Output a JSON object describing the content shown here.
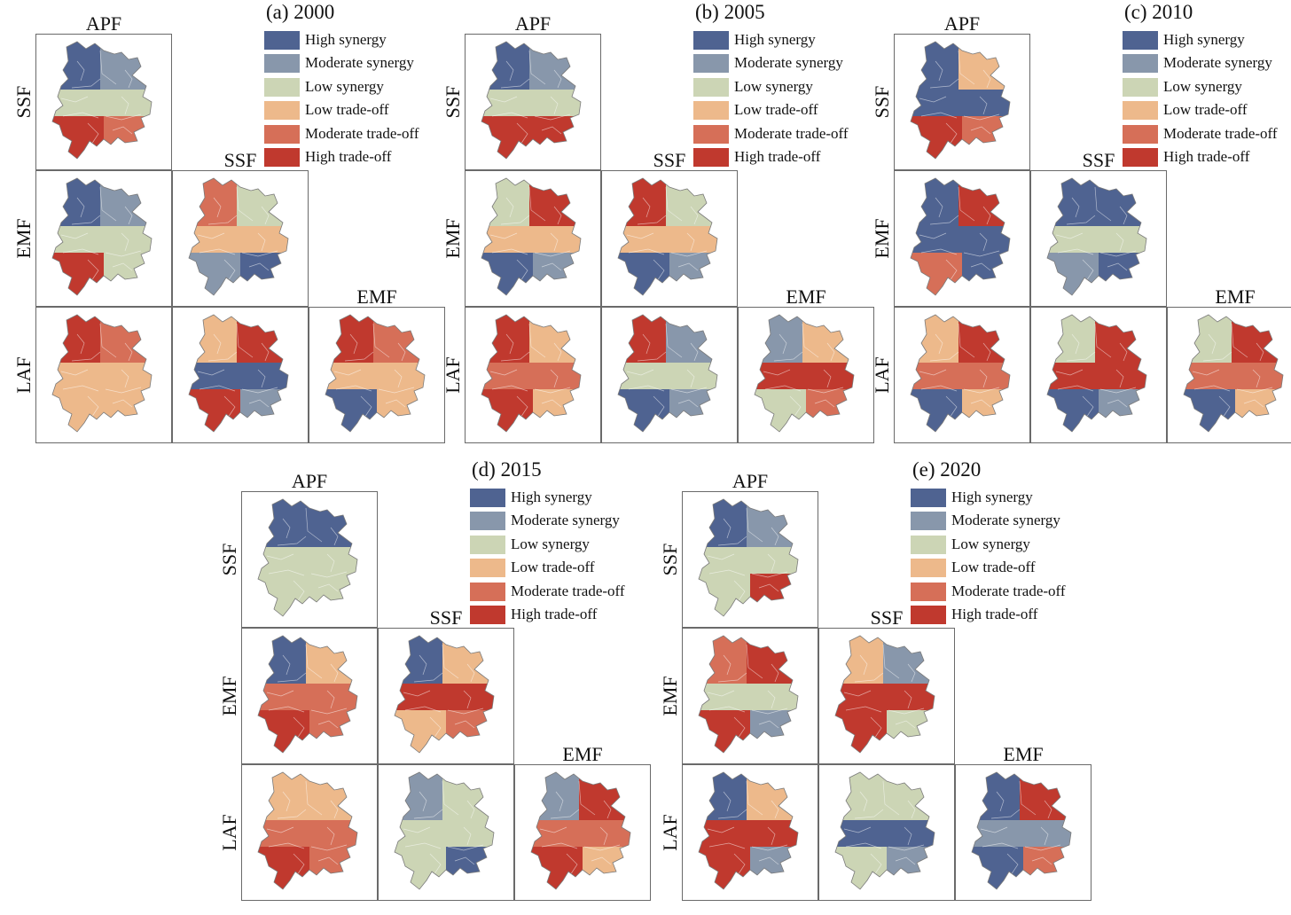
{
  "legend": [
    {
      "label": "High synergy",
      "color": "#4f6391"
    },
    {
      "label": "Moderate synergy",
      "color": "#8897ab"
    },
    {
      "label": "Low synergy",
      "color": "#ccd5b5"
    },
    {
      "label": "Low trade-off",
      "color": "#edb98b"
    },
    {
      "label": "Moderate trade-off",
      "color": "#d66f58"
    },
    {
      "label": "High trade-off",
      "color": "#c0392e"
    }
  ],
  "panels": [
    {
      "title": "(a) 2000",
      "cols": [
        "APF",
        "SSF",
        "EMF"
      ],
      "rows": [
        "SSF",
        "EMF",
        "LAF"
      ],
      "cells": [
        [
          "High synergy",
          "Moderate synergy",
          "Low synergy",
          "Low synergy",
          "High trade-off"
        ],
        [
          "High trade-off",
          "Moderate trade-off",
          "Low trade-off",
          "Low trade-off",
          "Low trade-off"
        ],
        [
          "Low trade-off",
          "High trade-off",
          "High synergy",
          "Moderate synergy",
          "High trade-off"
        ],
        [
          "High synergy",
          "Moderate synergy",
          "Low synergy",
          "Moderate trade-off",
          "High trade-off"
        ],
        [
          "Moderate trade-off",
          "Low synergy",
          "Low trade-off",
          "High synergy",
          "Moderate synergy"
        ],
        [
          "High trade-off",
          "Moderate trade-off",
          "Low trade-off",
          "Low trade-off",
          "High synergy"
        ]
      ]
    },
    {
      "title": "(b) 2005",
      "cols": [
        "APF",
        "SSF",
        "EMF"
      ],
      "rows": [
        "SSF",
        "EMF",
        "LAF"
      ],
      "cells": [
        [
          "Low synergy",
          "High trade-off",
          "Low trade-off",
          "Moderate synergy",
          "High synergy"
        ],
        [
          "High trade-off",
          "Low trade-off",
          "Moderate trade-off",
          "Low trade-off",
          "High trade-off"
        ],
        [
          "High trade-off",
          "Moderate synergy",
          "Low synergy",
          "Moderate synergy",
          "High synergy"
        ],
        [
          "High synergy",
          "Moderate synergy",
          "Low synergy",
          "High trade-off",
          "High trade-off"
        ],
        [
          "High trade-off",
          "Low synergy",
          "Low trade-off",
          "Moderate synergy",
          "High synergy"
        ],
        [
          "Moderate synergy",
          "Low trade-off",
          "High trade-off",
          "Moderate trade-off",
          "Low synergy"
        ]
      ]
    },
    {
      "title": "(c) 2010",
      "cols": [
        "APF",
        "SSF",
        "EMF"
      ],
      "rows": [
        "SSF",
        "EMF",
        "LAF"
      ],
      "cells": [
        [
          "High synergy",
          "High trade-off",
          "High synergy",
          "High synergy",
          "Moderate trade-off"
        ],
        [
          "Low trade-off",
          "High trade-off",
          "Moderate trade-off",
          "Low trade-off",
          "High synergy"
        ],
        [
          "Low synergy",
          "High trade-off",
          "High trade-off",
          "Moderate synergy",
          "High synergy"
        ],
        [
          "High synergy",
          "Low trade-off",
          "High synergy",
          "Moderate trade-off",
          "High trade-off"
        ],
        [
          "High synergy",
          "High synergy",
          "Low synergy",
          "High synergy",
          "Moderate synergy"
        ],
        [
          "Low synergy",
          "High trade-off",
          "Moderate trade-off",
          "Low trade-off",
          "High synergy"
        ]
      ]
    },
    {
      "title": "(d) 2015",
      "cols": [
        "APF",
        "SSF",
        "EMF"
      ],
      "rows": [
        "SSF",
        "EMF",
        "LAF"
      ],
      "cells": [
        [
          "High synergy",
          "Low trade-off",
          "Moderate trade-off",
          "Moderate trade-off",
          "High trade-off"
        ],
        [
          "Low trade-off",
          "Low trade-off",
          "Moderate trade-off",
          "Moderate trade-off",
          "High trade-off"
        ],
        [
          "Moderate synergy",
          "Low synergy",
          "Low synergy",
          "High synergy",
          "Low synergy"
        ],
        [
          "High synergy",
          "High synergy",
          "Low synergy",
          "Low synergy",
          "Low synergy"
        ],
        [
          "High synergy",
          "Low trade-off",
          "High trade-off",
          "Moderate trade-off",
          "Low trade-off"
        ],
        [
          "Moderate synergy",
          "High trade-off",
          "Moderate trade-off",
          "Low trade-off",
          "High trade-off"
        ]
      ]
    },
    {
      "title": "(e) 2020",
      "cols": [
        "APF",
        "SSF",
        "EMF"
      ],
      "rows": [
        "SSF",
        "EMF",
        "LAF"
      ],
      "cells": [
        [
          "Moderate trade-off",
          "High trade-off",
          "Low synergy",
          "Moderate synergy",
          "High trade-off"
        ],
        [
          "High synergy",
          "Low trade-off",
          "High trade-off",
          "Moderate synergy",
          "High trade-off"
        ],
        [
          "Low synergy",
          "Low synergy",
          "High synergy",
          "Moderate synergy",
          "Low synergy"
        ],
        [
          "High synergy",
          "Moderate synergy",
          "Low synergy",
          "High trade-off",
          "Low synergy"
        ],
        [
          "Low trade-off",
          "Moderate synergy",
          "High trade-off",
          "Low synergy",
          "High trade-off"
        ],
        [
          "High synergy",
          "High trade-off",
          "Moderate synergy",
          "Moderate trade-off",
          "High synergy"
        ]
      ]
    }
  ]
}
